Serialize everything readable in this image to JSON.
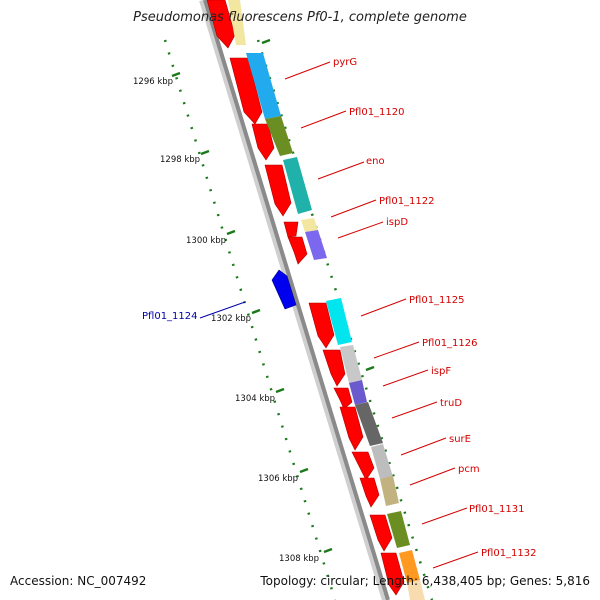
{
  "title": "Pseudomonas fluorescens Pf0-1, complete genome",
  "accession": "Accession: NC_007492",
  "topology": "Topology: circular; Length: 6,438,405 bp; Genes: 5,816",
  "ruler": [
    "1296 kbp",
    "1298 kbp",
    "1300 kbp",
    "1302 kbp",
    "1304 kbp",
    "1306 kbp",
    "1308 kbp"
  ],
  "gene_labels": [
    {
      "text": "pyrG",
      "color": "#d40000"
    },
    {
      "text": "Pfl01_1120",
      "color": "#d40000"
    },
    {
      "text": "eno",
      "color": "#d40000"
    },
    {
      "text": "Pfl01_1122",
      "color": "#d40000"
    },
    {
      "text": "ispD",
      "color": "#d40000"
    },
    {
      "text": "Pfl01_1124",
      "color": "#0000aa"
    },
    {
      "text": "Pfl01_1125",
      "color": "#d40000"
    },
    {
      "text": "Pfl01_1126",
      "color": "#d40000"
    },
    {
      "text": "ispF",
      "color": "#d40000"
    },
    {
      "text": "truD",
      "color": "#d40000"
    },
    {
      "text": "surE",
      "color": "#d40000"
    },
    {
      "text": "pcm",
      "color": "#d40000"
    },
    {
      "text": "Pfl01_1131",
      "color": "#d40000"
    },
    {
      "text": "Pfl01_1132",
      "color": "#d40000"
    }
  ],
  "colors": {
    "cds_forward": "#ff0000",
    "cds_reverse": "#0000ee",
    "backbone": "#9a9a9a",
    "tick": "#1a7a1a"
  }
}
